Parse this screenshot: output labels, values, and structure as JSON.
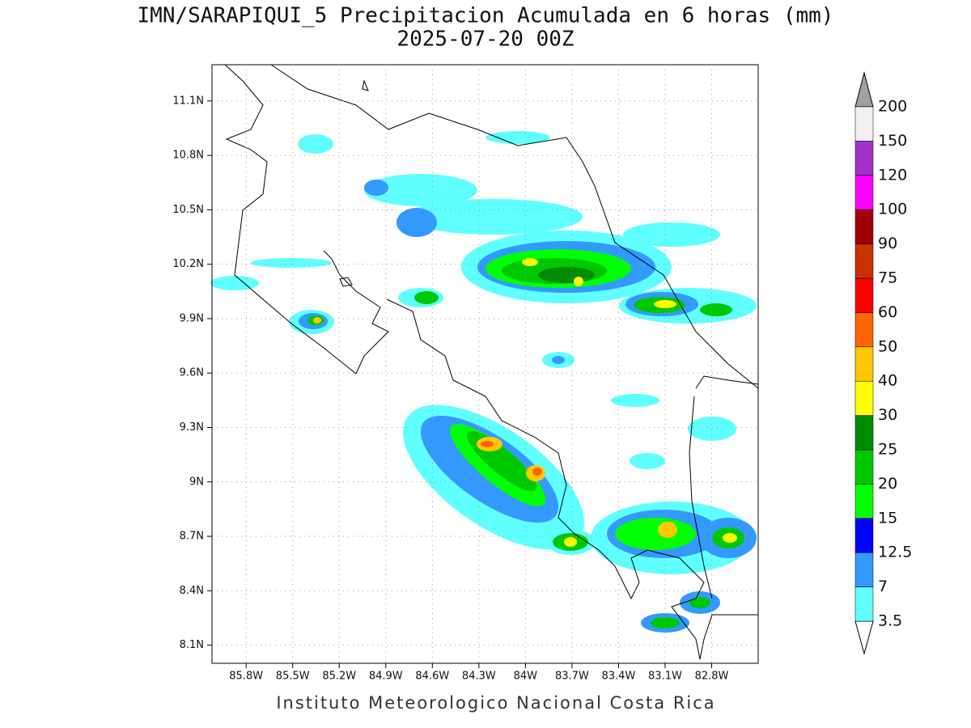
{
  "title": "IMN/SARAPIQUI_5 Precipitacion Acumulada en 6 horas (mm)",
  "subtitle": "2025-07-20 00Z",
  "map": {
    "xlim": [
      -86.02,
      -82.5
    ],
    "ylim": [
      8.0,
      11.3
    ],
    "grid": true,
    "xticks": [
      {
        "value": -85.8,
        "label": "85.8W"
      },
      {
        "value": -85.5,
        "label": "85.5W"
      },
      {
        "value": -85.2,
        "label": "85.2W"
      },
      {
        "value": -84.9,
        "label": "84.9W"
      },
      {
        "value": -84.6,
        "label": "84.6W"
      },
      {
        "value": -84.3,
        "label": "84.3W"
      },
      {
        "value": -84.0,
        "label": "84W"
      },
      {
        "value": -83.7,
        "label": "83.7W"
      },
      {
        "value": -83.4,
        "label": "83.4W"
      },
      {
        "value": -83.1,
        "label": "83.1W"
      },
      {
        "value": -82.8,
        "label": "82.8W"
      }
    ],
    "yticks": [
      {
        "value": 11.1,
        "label": "11.1N"
      },
      {
        "value": 10.8,
        "label": "10.8N"
      },
      {
        "value": 10.5,
        "label": "10.5N"
      },
      {
        "value": 10.2,
        "label": "10.2N"
      },
      {
        "value": 9.9,
        "label": "9.9N"
      },
      {
        "value": 9.6,
        "label": "9.6N"
      },
      {
        "value": 9.3,
        "label": "9.3N"
      },
      {
        "value": 9.0,
        "label": "9N"
      },
      {
        "value": 8.7,
        "label": "8.7N"
      },
      {
        "value": 8.4,
        "label": "8.4N"
      },
      {
        "value": 8.1,
        "label": "8.1N"
      }
    ]
  },
  "colorbar": {
    "levels": [
      3.5,
      7,
      12.5,
      15,
      20,
      25,
      30,
      40,
      50,
      60,
      75,
      90,
      100,
      120,
      150,
      200
    ],
    "colors": [
      "#60ffff",
      "#3399ff",
      "#0000ff",
      "#00ff00",
      "#00c800",
      "#008c00",
      "#ffff00",
      "#ffc800",
      "#ff6400",
      "#ff0000",
      "#c83200",
      "#a00000",
      "#ff00ff",
      "#a032c8",
      "#f0f0f0"
    ],
    "under_color": "#ffffff",
    "over_color": "#a0a0a0"
  },
  "footer": "Instituto Meteorologico Nacional Costa Rica"
}
